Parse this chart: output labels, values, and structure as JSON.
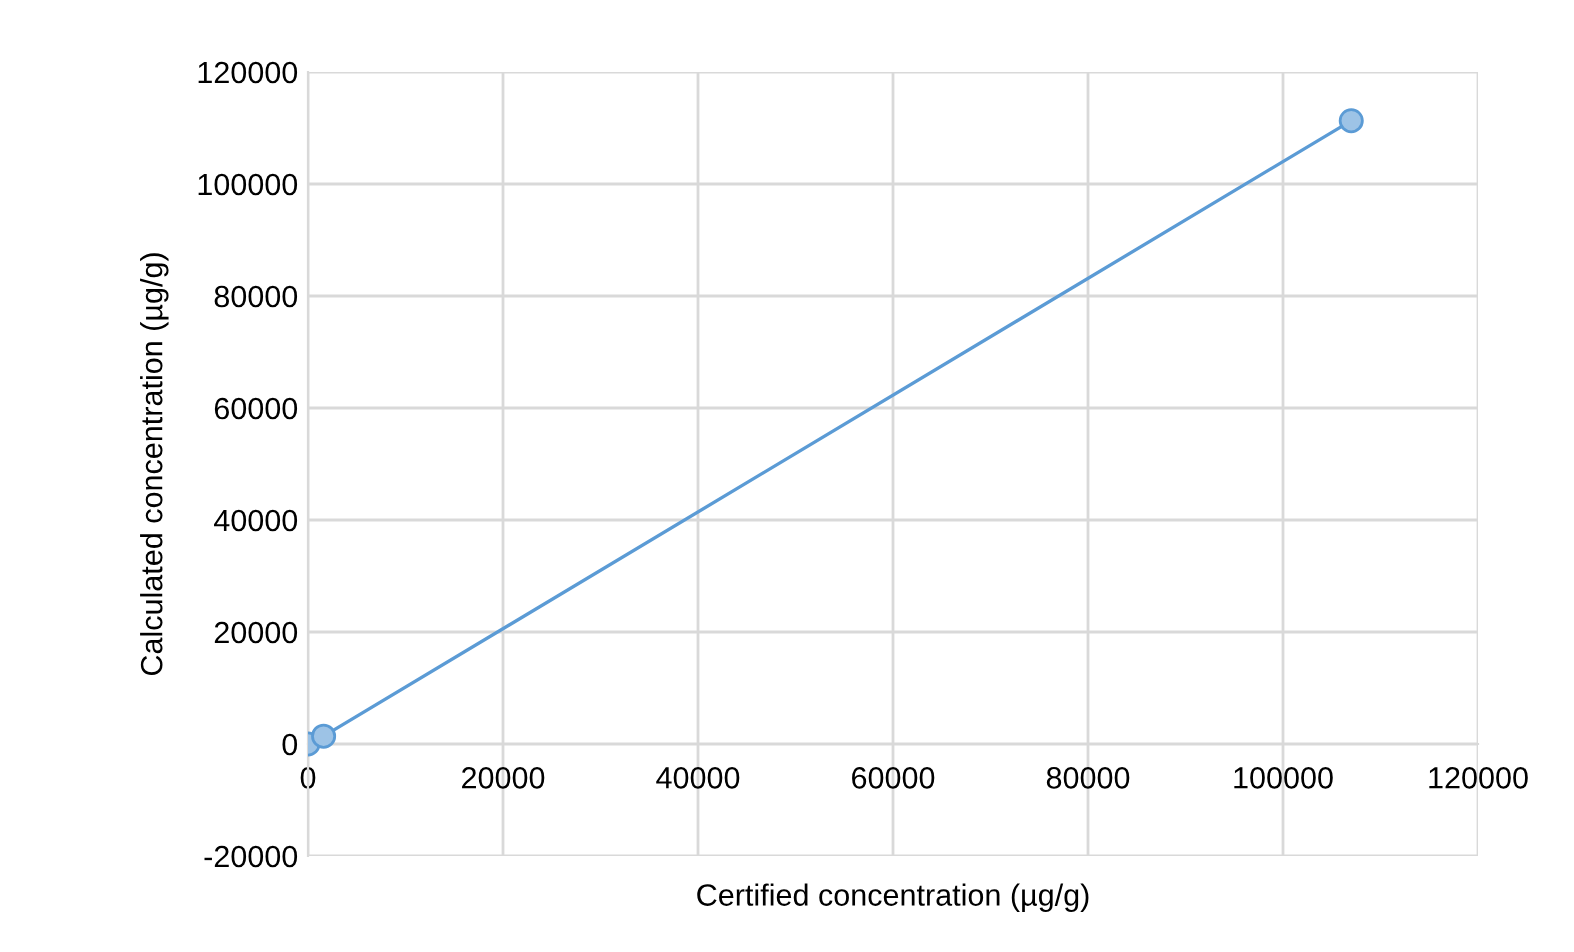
{
  "chart_data": {
    "type": "line",
    "xlabel": "Certified concentration (µg/g)",
    "ylabel": "Calculated concentration (µg/g)",
    "x": [
      0,
      1600,
      107000
    ],
    "series": [
      {
        "color": "#5b9bd5",
        "values": [
          0,
          1400,
          111300
        ]
      }
    ],
    "marker": "circle",
    "line_style": "solid",
    "grid": true,
    "xlim": [
      0,
      120000
    ],
    "xticks": [
      0,
      20000,
      40000,
      60000,
      80000,
      100000,
      120000
    ],
    "ylim": [
      -20000,
      120000
    ],
    "yticks": [
      -20000,
      0,
      20000,
      40000,
      60000,
      80000,
      100000,
      120000
    ]
  }
}
